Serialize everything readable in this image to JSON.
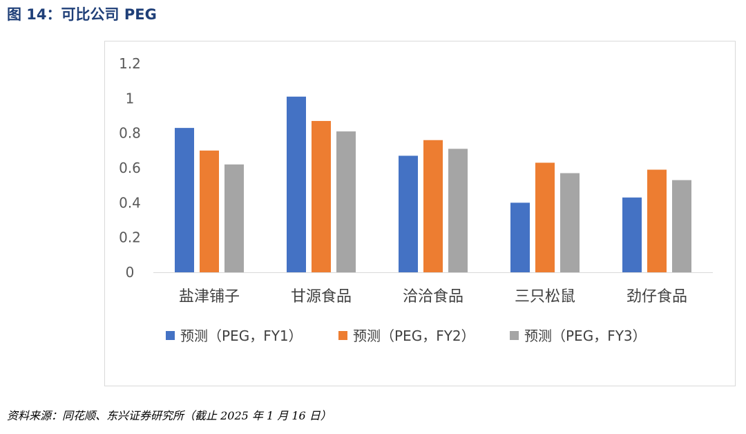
{
  "figure": {
    "title": "图 14：可比公司 PEG",
    "source": "资料来源：同花顺、东兴证券研究所（截止 2025 年 1 月 16 日）"
  },
  "chart_data": {
    "type": "bar",
    "categories": [
      "盐津铺子",
      "甘源食品",
      "洽洽食品",
      "三只松鼠",
      "劲仔食品"
    ],
    "series": [
      {
        "name": "预测（PEG，FY1）",
        "color": "#4472c4",
        "values": [
          0.83,
          1.01,
          0.67,
          0.4,
          0.43
        ]
      },
      {
        "name": "预测（PEG，FY2）",
        "color": "#ed7d31",
        "values": [
          0.7,
          0.87,
          0.76,
          0.63,
          0.59
        ]
      },
      {
        "name": "预测（PEG，FY3）",
        "color": "#a5a5a5",
        "values": [
          0.62,
          0.81,
          0.71,
          0.57,
          0.53
        ]
      }
    ],
    "ylim": [
      0,
      1.2
    ],
    "yticks": [
      "0",
      "0.2",
      "0.4",
      "0.6",
      "0.8",
      "1",
      "1.2"
    ],
    "grid": false,
    "legend": "bottom"
  }
}
